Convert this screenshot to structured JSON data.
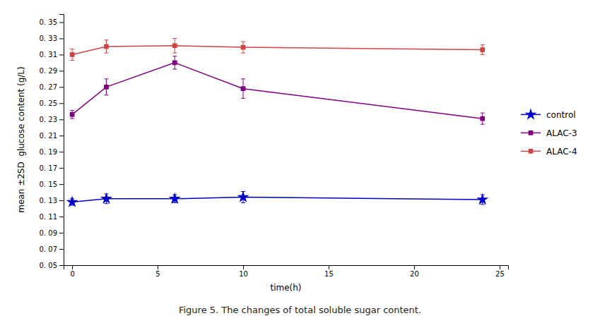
{
  "chart_data": {
    "type": "line",
    "caption": "Figure 5. The changes of total soluble sugar content.",
    "x_label": "time(h)",
    "y_label": "mean ±2SD  glucose content (g/L)",
    "x": [
      0,
      2,
      6,
      10,
      24
    ],
    "series": [
      {
        "name": "control",
        "color": "#0000cc",
        "marker": "star",
        "values": [
          0.128,
          0.132,
          0.132,
          0.134,
          0.131
        ],
        "errors": [
          0.004,
          0.006,
          0.005,
          0.007,
          0.006
        ]
      },
      {
        "name": "ALAC-3",
        "color": "#800080",
        "marker": "square",
        "values": [
          0.236,
          0.27,
          0.3,
          0.268,
          0.231
        ],
        "errors": [
          0.005,
          0.01,
          0.008,
          0.012,
          0.007
        ]
      },
      {
        "name": "ALAC-4",
        "color": "#cc4444",
        "marker": "square",
        "values": [
          0.31,
          0.32,
          0.321,
          0.319,
          0.316
        ],
        "errors": [
          0.007,
          0.008,
          0.009,
          0.007,
          0.006
        ]
      }
    ],
    "xlim": [
      -0.5,
      25.5
    ],
    "ylim": [
      0.05,
      0.36
    ],
    "xticks": [
      0,
      5,
      10,
      15,
      20,
      25
    ],
    "yticks": [
      {
        "value": 0.05,
        "label": "0. 05"
      },
      {
        "value": 0.07,
        "label": "0. 07"
      },
      {
        "value": 0.09,
        "label": "0. 09"
      },
      {
        "value": 0.11,
        "label": "0. 11"
      },
      {
        "value": 0.13,
        "label": "0. 13"
      },
      {
        "value": 0.15,
        "label": "0. 15"
      },
      {
        "value": 0.17,
        "label": "0. 17"
      },
      {
        "value": 0.19,
        "label": "0. 19"
      },
      {
        "value": 0.21,
        "label": "0. 21"
      },
      {
        "value": 0.23,
        "label": "0. 23"
      },
      {
        "value": 0.25,
        "label": "0. 25"
      },
      {
        "value": 0.27,
        "label": "0. 27"
      },
      {
        "value": 0.29,
        "label": "0. 29"
      },
      {
        "value": 0.31,
        "label": "0. 31"
      },
      {
        "value": 0.33,
        "label": "0. 33"
      },
      {
        "value": 0.35,
        "label": "0. 35"
      }
    ],
    "grid": false,
    "legend": "right"
  }
}
